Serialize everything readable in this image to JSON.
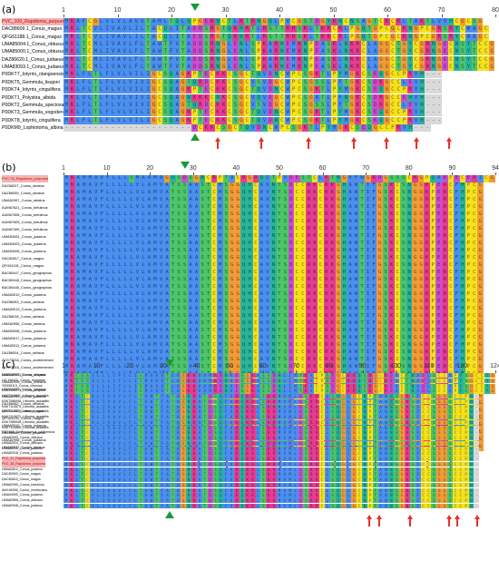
{
  "palette": {
    "C": "#f5e11c",
    "A": "#4b8ff0",
    "G": "#f29b36",
    "K": "#e63c93",
    "R": "#e63c93",
    "D": "#c94fd0",
    "E": "#c94fd0",
    "N": "#29b49c",
    "Q": "#29b49c",
    "S": "#4dc56a",
    "T": "#4dc56a",
    "L": "#4b8ff0",
    "I": "#4b8ff0",
    "V": "#4b8ff0",
    "M": "#4b8ff0",
    "F": "#4b8ff0",
    "W": "#4b8ff0",
    "P": "#f5e11c",
    "Y": "#29b49c",
    "H": "#29b49c",
    "-": "#ffffff",
    "gap": "#d9d9d9",
    "highlight": "#f4b4b4",
    "highlight_text": "#c00000",
    "arrow": "#e8302a",
    "triangle": "#1a9a3a"
  },
  "panels": [
    {
      "label": "(a)",
      "ticks": [
        "1",
        "10",
        "20",
        "30",
        "40",
        "50",
        "60",
        "70",
        "80"
      ],
      "names": [
        "PVC_100_Rapidoma_purpurea",
        "DAC88609.1_Conus_magus",
        "QFG61188.1_Conus_magus",
        "UMA85004.1_Conus_obtusus",
        "UMA85000.1_Conus_obtusus",
        "DAZ86620.1_Conus_judaeus",
        "UMA83093.1_Conus_judaeus",
        "P0DKT7_Iotyrris_olangoensis",
        "P0DKT5_Gemmula_lisajoni",
        "P0DKT4_Iotyrris_cingulifera",
        "P0DKT1_Polystira_albida",
        "P0DKT2_Gemmula_speciosa",
        "P0DKT3_Gemmula_sogodensis",
        "P0DKT8_Iotyrris_cingulifera",
        "P0DKM9_Lophiotoma_albina"
      ],
      "sequences": [
        "MKAFCGLVLVLAVVTAMLTQLQPGEKNCTLKTRNGQLPVCGSTDGYKNCNSAGTCKCRLTAKTLVVHCGCSG",
        "MKLTCVLIVAVLILTACQLITAEDSRGTQKHRTLRSTTRRSKLTKRCRLPGQTGPCGCKNGPCGRSRYCWAGC",
        "MKLTCVLIVAVLILTACQLITAEDSRGTQKHRTLRSTTRRSKLTKRCRLPGQTGPCGCKNGPCGRSRYCWAGC",
        "MKLTCMLIVAVLFLTAWTFVTADDSRNGLENLSPKARHEMKNPEASKLNKRCLAGGCTGYCGRNGECNSYTCCG",
        "MKLTCMLIVAVLFLTAWTFVTADDSRNGLENLSPKARHEMKNPEASKLNKRCLAGGCTGYCGRNGECNSYTCCG",
        "MKLTCMLIVAVLFLTAWTFVTADDSRNGLENLSPKARHEMKNPEASKLNKRCLAGGCTGYCGRNGECNSYTCCG",
        "MKLTCMLIVAVLFLTAWTFVTADDSRNGLENLSPKARHEMKNPEASKLNKRCLAGGCTGYCGRNGECNSYTCCG",
        "MKLFLTLFLVLVILIGCSQAGKPTECKKCSGCTQVDNCWPCSGKTLPYMGKCSEQGCCPRVH---",
        "MKLFLTLFLVLVIVIGCSQAGTQRDCKKCSGCVSVDGCWPCSGSSLPFTGKCSDKGCCLEVH---",
        "MKLFLTLFLVLVILIGCSQAGKPTECKKCSGCTQVDNCWPCSGKTLPYMGKCSEQGCCPRVH---",
        "MKLVLTLFLVLVIVIGCSQAGNKKKCNKCSGCVQVEGCWPCSGATLPFNGKCSDRGCCEHVH---",
        "MKLFLTLFLVLVIVIGCSQAGTQRDCKKCSGCVSVDGCWPCSGSSLPFTGKCSDKGCCLEVH---",
        "MKLFLTLFLVLVILIGCSQAGKPTECKKCSGCTQVDNCWPCSGKTLPYMGKCSEQGCCPRVH---",
        "MKLFLTLFLVLVILIGCSQAGKPTECKKCSGCTQVDNCWPCSGKTLPYMGKCSEQGCCPRVH---",
        "----------------------DCKKCSGCTQVDNCWPCSGKTLPYMGKCSEQGCCPRVH---"
      ],
      "arrows": [
        0.355,
        0.455,
        0.565,
        0.67,
        0.745,
        0.815,
        0.89
      ],
      "tri_pos": 0.305
    },
    {
      "label": "(b)",
      "ticks": [
        "1",
        "10",
        "20",
        "30",
        "40",
        "50",
        "60",
        "70",
        "80",
        "90",
        "94"
      ],
      "names": [
        "PVC-76_Rapidoma_purpurea",
        "DAZ86027_Conus_striatus",
        "DAZ86059_Conus_striatus",
        "UMA82957_Conus_striatus",
        "AUM67621_Conus_betulinus",
        "AUM67608_Conus_betulinus",
        "AUM67605_Conus_betulinus",
        "AUM67499_Conus_betulinus",
        "UMA83004_Conus_judaeus",
        "UMA83003_Conus_judaeus",
        "UMA83008_Conus_judaeus",
        "DAC80817_Conus_magus",
        "QFG61151_Conus_magus",
        "BAC65447_Conus_geographus",
        "BAC65448_Conus_geographus",
        "BAC65446_Conus_geographus",
        "UMA83010_Conus_judaeus",
        "DAZ86063_Conus_striatus",
        "UMA83013_Conus_judaeus",
        "DAZ86018_Conus_striatus",
        "UMA82996_Conus_striatus",
        "UMA83008_Conus_judaeus",
        "UMA83017_Conus_judaeus",
        "UMA83011_Conus_judaeus",
        "DAZ86004_Conus_striatus",
        "AYG73534_Conus_andremenezi",
        "AYG73516_Conus_andremenezi",
        "UMA82965_Conus_obtusus",
        "UMA82995_Conus_obtusus",
        "UMA82990_Conus_judaeus",
        "UMA82941_Conus_judaeus",
        "DAZ86082_Conus_striatus",
        "QFG61154_Conus_magus",
        "QFG61152_Conus_magus",
        "UMA83010_Conus_judaeus",
        "DAZ86089_Conus_judaeus",
        "UMA82996_Conus_judaeus",
        "UMA82937_Conus_striatus"
      ],
      "sequences": [
        "MKAMMAVFLLLSMAAMAGQSDSGNCRPTVCRGRQITPVDESTCLKTNGVFWGRDGSSSCKGPQAEPECERICG",
        "MKAMAVFLLLLLVLAMVATSSAASTCMSGGQHCAVNTSDCCRKCKKGHAWTIFGSKCSNGGKPERCFHPCG",
        "MKAMAVFLLLLLVLAMVATSSAASTCMSGGQHCAVNTSDCCRKCKKGHAWTIFGSKCSNGGKPERCFHPCG",
        "MKAMAVFLLLLLVLAMVATSSAASTCMSGGQHCAVNTSDCCRKCKKGHAWTIFGSKCSNGGKPERCFHPCG",
        "MKAMAVFLLLLLVLAMVATSSAASTCMSGGQHCAVNTSDCCRKCKKGHAWTIFGSKCSNGGKPERCFHPCG",
        "MKAMAVFLLLLLVLAMVATSSAASTCMSGGQHCAVNTSDCCRKCKKGHAWTIFGSKCSNGGKPERCFHPCG",
        "MKAMAVFLLLLLVLAMVATSSAASTCMSGGQHCAVNTSDCCRKCKKGHAWTIFGSKCSNGGKPERCFHPCG",
        "MKAMAVFLLLLLVLAMVATSSAASTCMSGGQHCAVNTSDCCRKCKKGHAWTIFGSKCSNGGKPERCFHPCG",
        "MKAMAVFLLLLLVLAMVATSSAASTCMSGGQHCAVNTSDCCRKCKKGHAWTIFGSKCSNGGKPERCFHPCG",
        "MKAMAVFLLLLLVLAMVATSSAASTCMSGGQHCAVNTSDCCRKCKKGHAWTIFGSKCSNGGKPERCFHPCG",
        "MKAMAVFLLLLLVLAMVATSSAASTCMSGGQHCAVNTSDCCRKCKKGHAWTIFGSKCSNGGKPERCFHPCG",
        "MKAMAVFLLLLLVLAMVATSSAASTCMSGGQHCAVNTSDCCRKCKKGHAWTIFGSKCSNGGKPERCFHPCG",
        "MKAMAVFLLLLLVLAMVATSSAASTCMSGGQHCAVNTSDCCRKCKKGHAWTIFGSKCSNGGKPERCFHPCG",
        "MKAMAVFLLLLLVLAMVATSSAASTCMSGGQHCAVNTSDCCRKCKKGHAWTIFGSKCSNGGKPERCFHPCG",
        "MKAMAVFLLLLLVLAMVATSSAASTCMSGGQHCAVNTSDCCRKCKKGHAWTIFGSKCSNGGKPERCFHPCG",
        "MKAMAVFLLLLLVLAMVATSSAASTCMSGGQHCAVNTSDCCRKCKKGHAWTIFGSKCSNGGKPERCFHPCG",
        "MKAMAVFLLLLLVLAMVATSSAASTCMSGGQHCAVNTSDCCRKCKKGHAWTIFGSKCSNGGKPERCFHPCG",
        "MKAMAVFLLLLLVLAMVATSSAASTCMSGGQHCAVNTSDCCRKCKKGHAWTIFGSKCSNGGKPERCFHPCG",
        "MKAMAVFLLLLLVLAMVATSSAASTCMSGGQHCAVNTSDCCRKCKKGHAWTIFGSKCSNGGKPERCFHPCG",
        "MKAMAVFLLLLLVLAMVATSSAASTCMSGGQHCAVNTSDCCRKCKKGHAWTIFGSKCSNGGKPERCFHPCG",
        "MKAMAVFLLLLLVLAMVATSSAASTCMSGGQHCAVNTSDCCRKCKKGHAWTIFGSKCSNGGKPERCFHPCG",
        "MKAMAVFLLLLLVLAMVATSSAASTCMSGGQHCAVNTSDCCRKCKKGHAWTIFGSKCSNGGKPERCFHPCG",
        "MKAMAVFLLLLLVLAMVATSSAASTCMSGGQHCAVNTSDCCRKCKKGHAWTIFGSKCSNGGKPERCFHPCG",
        "MKAMAVFLLLLLVLAMVATSSAASTCMSGGQHCAVNTSDCCRKCKKGHAWTIFGSKCSNGGKPERCFHPCG",
        "MKAMAVFLLLLLVLAMVATSSAASTCMSGGQHCAVNTSDCCRKCKKGHAWTIFGSKCSNGGKPERCFHPCG",
        "MKAMAVFLLLLLVLAMVATSSAASTCMSGGQHCAVNTSDCCRKCKKGHAWTIFGSKCSNGGKPERCFHPCG",
        "MKAMAVFLLLLLVLAMVATSSAASTCMSGGQHCAVNTSDCCRKCKKGHAWTIFGSKCSNGGKPERCFHPCG",
        "MKAMAVFLLLLLVLAMVATSSAASTCMSGGQHCAVNTSDCCRKCKKGHAWTIFGSKCSNGGKPERCFHPCG",
        "MKAMAVFLLLLLVLAMVATSSAASTCMSGGQHCAVNTSDCCRKCKKGHAWTIFGSKCSNGGKPERCFHPCG",
        "MKAMAVFLLLLLVLAMVATSSAASTCMSGGQHCAVNTSDCCRKCKKGHAWTIFGSKCSNGGKPERCFHPCG",
        "MKAMAVFLLLLLVLAMVATSSAASTCMSGGQHCAVNTSDCCRKCKKGHAWTIFGSKCSNGGKPERCFHPCG",
        "MKAMAVFLLLLLVLAMVATSSAASTCMSGGQHCAVNTSDCCRKCKKGHAWTIFGSKCSNGGKPERCFHPCG",
        "MKAMAVFLLLLLVLAMVATSSAASTCMSGGQHCAVNTSDCCRKCKKGHAWTIFGSKCSNGGKPERCFHPCG",
        "MKAMAVFLLLLLVLAMVATSSAASTCMSGGQHCAVNTSDCCRKCKKGHAWTIFGSKCSNGGKPERCFHPCG",
        "MKAMAVFLLLLLVLAMVATSSAASTCMSGGQHCAVNTSDCCRKCKKGHAWTIFGSKCSNGGKPERCFHPCG",
        "MKAMAVFLLLLLVLAMVATSSAASTCMSGGQHCAVNTSDCCRKCKKGHAWTIFGSKCSNGGKPERCFHPCG",
        "MKAMAVFLLLLLVLAMVATSSAASTCMSGGQHCAVNTSDCCRKCKKGHAWTIFGSKCSNGGKPERCFHPCG",
        "MKAMAVFLLLLLVLAMVATSSAASTCMSGGQHCAVNTSDCCRKCKKGHAWTIFGSKCSNGGKPERCFHPCG"
      ],
      "arrows": [
        0.31,
        0.375,
        0.5,
        0.625,
        0.655,
        0.72,
        0.84,
        0.895
      ],
      "tri_pos": 0.282
    },
    {
      "label": "(c)",
      "ticks": [
        "1",
        "10",
        "20",
        "30",
        "40",
        "50",
        "60",
        "70",
        "80",
        "90",
        "100",
        "110",
        "120",
        "124"
      ],
      "names": [
        "KAK3160071_Conus_crispata",
        "UIJ 196102_Conus_mongeae",
        "YBX58113_Conus_chionica",
        "KAK3160073_Conus_crispata",
        "KAK7110891_Lithorna_assaidiis",
        "KAK7086948_Lithorna_assaidiis",
        "KAK7110874_Lithorna_assaidiis",
        "KAK7110875_Lithorna_assaidiis",
        "KAK7110873_Lithorna_assaidiis",
        "KAK7085946_Lithorna_assaidiis",
        "KAK7110880_Lithorna_assaidiis",
        "DBC468_Californiconus_californicus",
        "UMA82993_Conus_obtusus",
        "UMA82924_Conus_obtusus",
        "UMA83010_Conus_judaeus",
        "UMA82918_Conus_judaeus",
        "PVC_37_Rapidoma_purpurea",
        "PVC_38_Rapidoma_purpurea",
        "UMA82812_Conus_judaeus",
        "DAC80993_Conus_magus",
        "DAC80615_Conus_magus",
        "UMA82990_Conus_betulinus",
        "AWL66396_Conus_ventricosus",
        "UMA94900_Conus_judaeus",
        "UMA82895_Conus_obtusus",
        "UMA82948_Conus_judaeus"
      ],
      "sequences": [
        "MKTSSILLLIFLLISMAAVTLAGKKVAMRDNVESGKASSDHLIMTKACPSDGCKRQSRGCRDACTNADLSCCAPYSGCCYG",
        "MKTSSILLLIFLLISMAAVTLAGKKVAMRDNVESGKASSDHLIMTKACPSDGCKRQSRGCRDACTNADLSCCAPYSGCCYG",
        "MKTSSILLLIFLLISMAAVTLAGKKVAMRDNVESGKASSDHLIMTKACPSDGCKRQSRGCRDACTNADLSCCAPYSGCCYG",
        "MKTSSILLLIFLLISMAAVTLAGKKVAMRDNVESGKASSDHLIMTKACPSDGCKRQSRGCRDACTNADLSCCAPYSGCCYG",
        "MKLTCVLIVAVLFLTAWTFATAGNRATDSQFVRQKRLSKKMVMLESRRCLSQGLGCNPTAWNSGKSFCCSGGSCCPN-",
        "MKLTCVLIVAVLFLTAWTFATAGNRATDSQFVRQKRLSKKMVMLESRRCLSQGLGCNPTAWNSGKSFCCSGGSCCPN-",
        "MKLTCVLIVAVLFLTAWTFATAGNRATDSQFVRQKRLSKKMVMLESRRCLSQGLGCNPTAWNSGKSFCCSGGSCCPN-",
        "MKLTCVLIVAVLFLTAWTFATAGNRATDSQFVRQKRLSKKMVMLESRRCLSQGLGCNPTAWNSGKSFCCSGGSCCPN-",
        "MKLTCVLIVAVLFLTAWTFATAGNRATDSQFVRQKRLSKKMVMLESRRCLSQGLGCNPTAWNSGKSFCCSGGSCCPN-",
        "MKLTCVLIVAVLFLTAWTFATAGNRATDSQFVRQKRLSKKMVMLESRRCLSQGLGCNPTAWNSGKSFCCSGGSCCPN-",
        "MKLTCVLIVAVLFLTAWTFATAGNRATDSQFVRQKRLSKKMVMLESRRCLSQGLGCNPTAWNSGKSFCCSGGSCCPN-",
        "MKLTCVLIVAVLFLTAWTFATAGNRATDSQFVRQKRLSKKMVMLESRRCLSQGLGCNPTAWNSGKSFCCSGGSCCPN-",
        "MKLTCVLIVAVLFLTAWTFATAGNRATDSQFVRQKRLSKKMVMLESRRCLSQGLGCNPTAWNSGKSFCCSGGSCCPN-",
        "MKLTCVLIVAVLFLTAWTFATAGNRATDSQFVRQKRLSKKMVMLESRRCLSQGLGCNPTAWNSGKSFCCSGGSCCPN-",
        "MKLTCVLIVAVLFLTAWTFATAGNRATDSQFVRQKRLSKKMVMLESRRCLSQGLGCNPTAWNSGKSFCCSGGSCCPN-",
        "MKLTCVLIVAVLFLTAWTFATAGNRATDSQFVRQKRLSKKMVMLESRRCLSQGLGCNPTAWNSGKSFCCSGGSCCPN-",
        "MKLTCVLIVAVLFLTAWTFATAGNRATDSQFVRQKRLSKKMVMLESRRCLSQGLGCNPTAWNSGKSFCCSGGSCCPN-",
        "MKLTCVLIVAVLFLTAWTFATAGNRATDSQFVRQKRLSKKMVMLESRRCLSQGLGCNPTAWNSGKSFCCSGGSCCPN-",
        "MKLTCVLIVAVLFLTAWTFATAGNRATDSQFVRQKRLSKKMVMLESRRCLSQGLGCNPTAWNSGKSFCCSGGSCCPN-",
        "MKLTCVLIVAVLFLTAWTFATAGNRATDSQFVRQKRLSKKMVMLESRRCLSQGLGCNPTAWNSGKSFCCSGGSCCPN-",
        "MKLTCVLIVAVLFLTAWTFATAGNRATDSQFVRQKRLSKKMVMLESRRCLSQGLGCNPTAWNSGKSFCCSGGSCCPN-",
        "MKLTCVLIVAVLFLTAWTFATAGNRATDSQFVRQKRLSKKMVMLESRRCLSQGLGCNPTAWNSGKSFCCSGGSCCPN-",
        "MKLTCVLIVAVLFLTAWTFATAGNRATDSQFVRQKRLSKKMVMLESRRCLSQGLGCNPTAWNSGKSFCCSGGSCCPN-",
        "MKLTCVLIVAVLFLTAWTFATAGNRATDSQFVRQKRLSKKMVMLESRRCLSQGLGCNPTAWNSGKSFCCSGGSCCPN-",
        "MKLTCVLIVAVLFLTAWTFATAGNRATDSQFVRQKRLSKKMVMLESRRCLSQGLGCNPTAWNSGKSFCCSGGSCCPN-",
        "MKLTCVLIVAVLFLTAWTFATAGNRATDSQFVRQKRLSKKMVMLESRRCLSQGLGCNPTAWNSGKSFCCSGGSCCPN-"
      ],
      "arrows": [
        0.705,
        0.73,
        0.8,
        0.89,
        0.91,
        0.955
      ],
      "tri_pos": 0.245
    }
  ]
}
